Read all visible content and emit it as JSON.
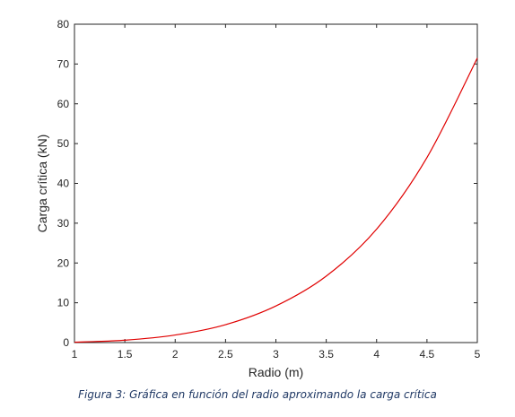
{
  "caption": "Figura 3: Gráfica en función del radio aproximando la carga crítica",
  "chart_data": {
    "type": "line",
    "title": "",
    "xlabel": "Radio (m)",
    "ylabel": "Carga crítica (kN)",
    "xlim": [
      1,
      5
    ],
    "ylim": [
      0,
      80
    ],
    "xticks": [
      "1",
      "1.5",
      "2",
      "2.5",
      "3",
      "3.5",
      "4",
      "4.5",
      "5"
    ],
    "yticks": [
      "0",
      "10",
      "20",
      "30",
      "40",
      "50",
      "60",
      "70",
      "80"
    ],
    "grid": false,
    "legend": "none",
    "series": [
      {
        "color": "#e00000",
        "x": [
          1,
          1.5,
          2,
          2.5,
          3,
          3.5,
          4,
          4.5,
          5
        ],
        "y": [
          0.1,
          0.6,
          1.9,
          4.5,
          9.2,
          16.7,
          28.5,
          46.5,
          71.5
        ]
      }
    ]
  }
}
